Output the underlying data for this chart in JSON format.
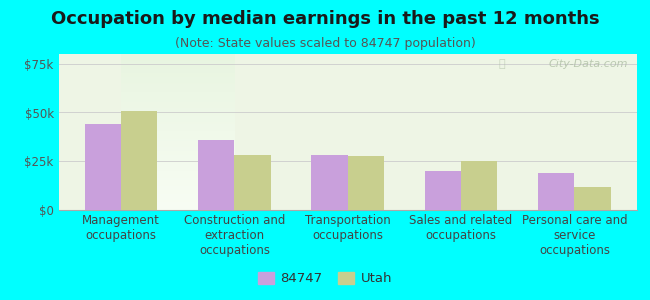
{
  "title": "Occupation by median earnings in the past 12 months",
  "subtitle": "(Note: State values scaled to 84747 population)",
  "categories": [
    "Management\noccupations",
    "Construction and\nextraction\noccupations",
    "Transportation\noccupations",
    "Sales and related\noccupations",
    "Personal care and\nservice\noccupations"
  ],
  "values_84747": [
    44000,
    36000,
    28000,
    20000,
    19000
  ],
  "values_utah": [
    51000,
    28000,
    27500,
    25000,
    12000
  ],
  "color_84747": "#c9a0dc",
  "color_utah": "#c8cf8e",
  "background_outer": "#00ffff",
  "background_plot_top": "#d8edd8",
  "background_plot_bot": "#f5faf0",
  "ylim": [
    0,
    80000
  ],
  "yticks": [
    0,
    25000,
    50000,
    75000
  ],
  "ytick_labels": [
    "$0",
    "$25k",
    "$50k",
    "$75k"
  ],
  "legend_labels": [
    "84747",
    "Utah"
  ],
  "title_fontsize": 13,
  "subtitle_fontsize": 9,
  "tick_fontsize": 8.5,
  "xlabel_fontsize": 8.5,
  "bar_width": 0.32,
  "watermark": "City-Data.com"
}
